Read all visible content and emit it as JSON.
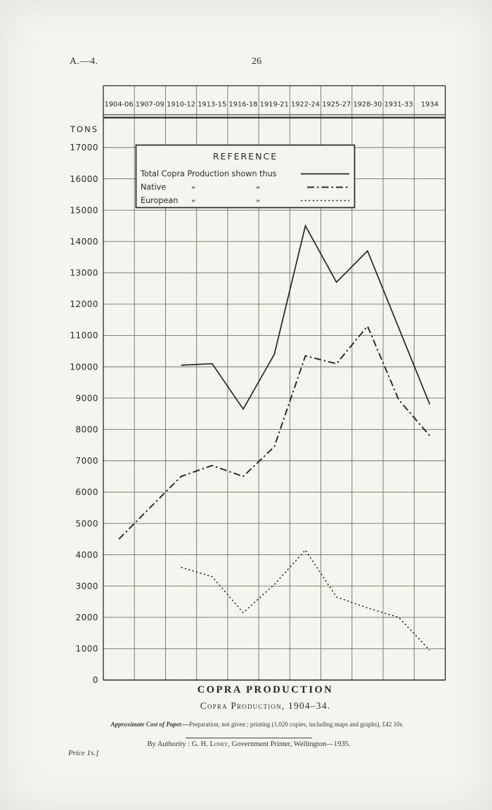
{
  "header": {
    "report_code": "A.—4.",
    "page_number": "26"
  },
  "legend": {
    "title": "REFERENCE",
    "rows": [
      {
        "text": "Total Copra Production shown thus",
        "ditto1": "",
        "ditto2": "",
        "style": "solid"
      },
      {
        "text": "Native",
        "ditto1": "„",
        "ditto2": "„",
        "style": "dash-dot"
      },
      {
        "text": "European",
        "ditto1": "„",
        "ditto2": "„",
        "style": "dotted"
      }
    ]
  },
  "chart_data": {
    "type": "line",
    "title": "COPRA PRODUCTION",
    "subtitle": "Copra Production, 1904–34.",
    "ylabel": "TONS",
    "ylim": [
      0,
      17900
    ],
    "ytick_step": 1000,
    "ytick_max": 17000,
    "grid": true,
    "legend_position": "top-inside",
    "categories": [
      "1904-06",
      "1907-09",
      "1910-12",
      "1913-15",
      "1916-18",
      "1919-21",
      "1922-24",
      "1925-27",
      "1928-30",
      "1931-33",
      "1934"
    ],
    "series": [
      {
        "name": "Total Copra Production",
        "style": "solid",
        "values": [
          null,
          null,
          10050,
          10100,
          8650,
          10400,
          14500,
          12700,
          13700,
          11250,
          8800
        ]
      },
      {
        "name": "Native",
        "style": "dash-dot",
        "values": [
          4500,
          5500,
          6500,
          6850,
          6500,
          7450,
          10350,
          10100,
          11300,
          8950,
          7800
        ]
      },
      {
        "name": "European",
        "style": "dotted",
        "values": [
          null,
          null,
          3600,
          3300,
          2150,
          3050,
          4150,
          2650,
          2300,
          2000,
          950
        ]
      }
    ]
  },
  "footer": {
    "title": "COPRA PRODUCTION",
    "caption": "Copra Production, 1904–34.",
    "cost_italic": "Approximate Cost of Paper.—",
    "cost_rest": "Preparation, not given ; printing (1,020 copies, including maps and graphs), £42 10s.",
    "authority_prefix": "By Authority : ",
    "authority_name": "G. H. Loney",
    "authority_rest": ", Government Printer, Wellington—1935.",
    "price": "Price 1s.]"
  },
  "colors": {
    "ink": "#2a2922",
    "grid": "#73725f",
    "paper": "#f5f4ef"
  }
}
